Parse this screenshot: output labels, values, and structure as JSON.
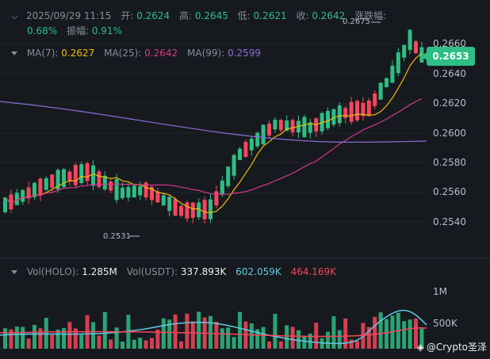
{
  "header": {
    "datetime": "2025/09/29 11:15",
    "open_label": "开:",
    "open": "0.2624",
    "high_label": "高:",
    "high": "0.2645",
    "low_label": "低:",
    "low": "0.2621",
    "close_label": "收:",
    "close": "0.2642",
    "change_label": "涨跌幅:",
    "change": "0.68%",
    "amplitude_label": "振幅:",
    "amplitude": "0.91%"
  },
  "ma": {
    "ma7_label": "MA(7):",
    "ma7": "0.2627",
    "ma25_label": "MA(25):",
    "ma25": "0.2642",
    "ma99_label": "MA(99):",
    "ma99": "0.2599"
  },
  "volume_header": {
    "vol_holo_label": "Vol(HOLO):",
    "vol_holo": "1.285M",
    "vol_usdt_label": "Vol(USDT):",
    "vol_usdt": "337.893K",
    "vol_ma1": "602.059K",
    "vol_ma2": "464.169K"
  },
  "price_axis": [
    "0.2660",
    "0.2640",
    "0.2620",
    "0.2600",
    "0.2580",
    "0.2560",
    "0.2540"
  ],
  "volume_axis": [
    "1M",
    "500K"
  ],
  "current_price": "0.2653",
  "annotations": {
    "high_marker": "0.2675",
    "low_marker": "0.2531"
  },
  "watermark_text": "@Crypto圣泽",
  "colors": {
    "up": "#2ebd85",
    "down": "#f6465d",
    "ma7": "#f0b90b",
    "ma25": "#d4388d",
    "ma99": "#8f6cd8",
    "vol_ma1": "#62c8e0",
    "vol_ma2": "#f6465d",
    "background": "#161a1e"
  }
}
